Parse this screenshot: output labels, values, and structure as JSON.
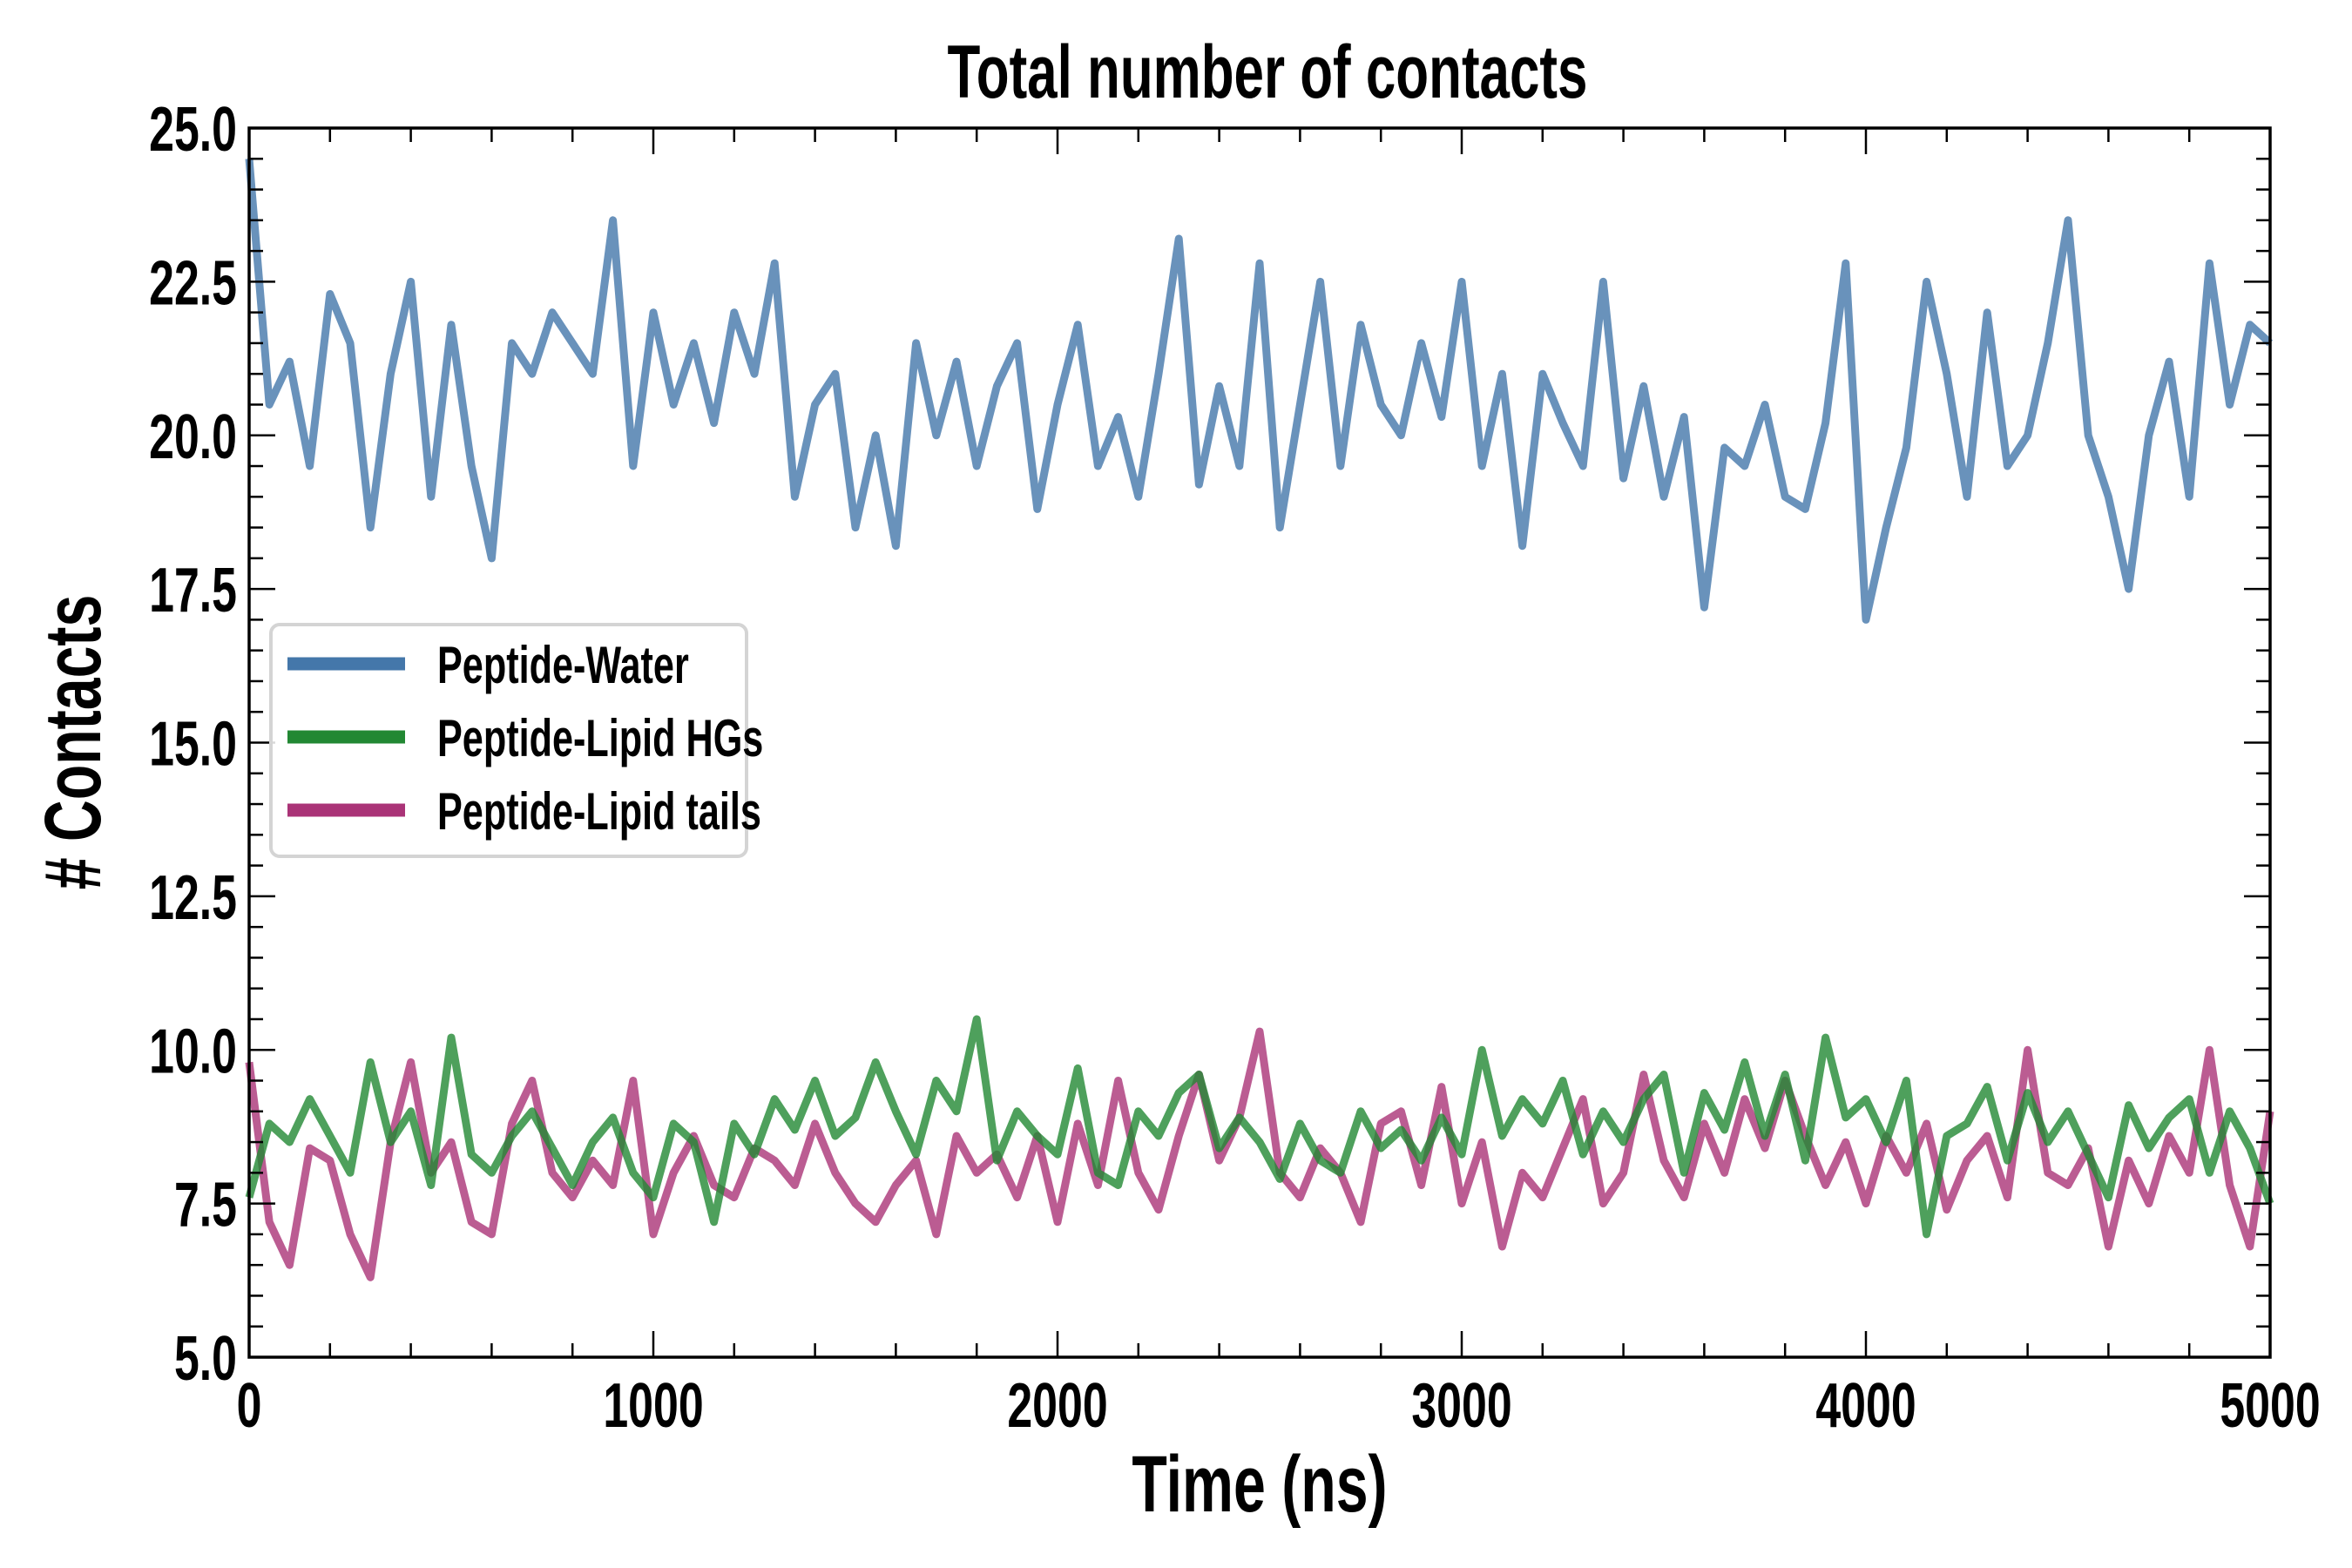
{
  "chart_data": {
    "type": "line",
    "title": "Total number of contacts",
    "xlabel": "Time (ns)",
    "ylabel": "# Contacts",
    "xlim": [
      0,
      5000
    ],
    "ylim": [
      5.0,
      25.0
    ],
    "xticks": [
      0,
      1000,
      2000,
      3000,
      4000,
      5000
    ],
    "xtick_labels": [
      "0",
      "1000",
      "2000",
      "3000",
      "4000",
      "5000"
    ],
    "yticks": [
      5.0,
      7.5,
      10.0,
      12.5,
      15.0,
      17.5,
      20.0,
      22.5,
      25.0
    ],
    "ytick_labels": [
      "5.0",
      "7.5",
      "10.0",
      "12.5",
      "15.0",
      "17.5",
      "20.0",
      "22.5",
      "25.0"
    ],
    "grid": false,
    "legend_position": "center-left",
    "x_step": 50,
    "series": [
      {
        "name": "Peptide-Water",
        "color": "#4477aa",
        "values": [
          24.5,
          20.5,
          21.2,
          19.5,
          22.3,
          21.5,
          18.5,
          21.0,
          22.5,
          19.0,
          21.8,
          19.5,
          18.0,
          21.5,
          21.0,
          22.0,
          21.5,
          21.0,
          23.5,
          19.5,
          22.0,
          20.5,
          21.5,
          20.2,
          22.0,
          21.0,
          22.8,
          19.0,
          20.5,
          21.0,
          18.5,
          20.0,
          18.2,
          21.5,
          20.0,
          21.2,
          19.5,
          20.8,
          21.5,
          18.8,
          20.5,
          21.8,
          19.5,
          20.3,
          19.0,
          21.0,
          23.2,
          19.2,
          20.8,
          19.5,
          22.8,
          18.5,
          20.5,
          22.5,
          19.5,
          21.8,
          20.5,
          20.0,
          21.5,
          20.3,
          22.5,
          19.5,
          21.0,
          18.2,
          21.0,
          20.2,
          19.5,
          22.5,
          19.3,
          20.8,
          19.0,
          20.3,
          17.2,
          19.8,
          19.5,
          20.5,
          19.0,
          18.8,
          20.2,
          22.8,
          17.0,
          18.5,
          19.8,
          22.5,
          21.0,
          19.0,
          22.0,
          19.5,
          20.0,
          21.5,
          23.5,
          20.0,
          19.0,
          17.5,
          20.0,
          21.2,
          19.0,
          22.8,
          20.5,
          21.8,
          21.5
        ]
      },
      {
        "name": "Peptide-Lipid HGs",
        "color": "#228833",
        "values": [
          7.6,
          8.8,
          8.5,
          9.2,
          8.6,
          8.0,
          9.8,
          8.5,
          9.0,
          7.8,
          10.2,
          8.3,
          8.0,
          8.6,
          9.0,
          8.4,
          7.8,
          8.5,
          8.9,
          8.0,
          7.6,
          8.8,
          8.5,
          7.2,
          8.8,
          8.3,
          9.2,
          8.7,
          9.5,
          8.6,
          8.9,
          9.8,
          9.0,
          8.3,
          9.5,
          9.0,
          10.5,
          8.2,
          9.0,
          8.6,
          8.3,
          9.7,
          8.0,
          7.8,
          9.0,
          8.6,
          9.3,
          9.6,
          8.4,
          8.9,
          8.5,
          7.9,
          8.8,
          8.2,
          8.0,
          9.0,
          8.4,
          8.7,
          8.2,
          8.9,
          8.3,
          10.0,
          8.6,
          9.2,
          8.8,
          9.5,
          8.3,
          9.0,
          8.5,
          9.2,
          9.6,
          8.0,
          9.3,
          8.7,
          9.8,
          8.6,
          9.6,
          8.2,
          10.2,
          8.9,
          9.2,
          8.5,
          9.5,
          7.0,
          8.6,
          8.8,
          9.4,
          8.2,
          9.3,
          8.5,
          9.0,
          8.3,
          7.6,
          9.1,
          8.4,
          8.9,
          9.2,
          8.0,
          9.0,
          8.4,
          7.5
        ]
      },
      {
        "name": "Peptide-Lipid tails",
        "color": "#aa3377",
        "values": [
          9.8,
          7.2,
          6.5,
          8.4,
          8.2,
          7.0,
          6.3,
          8.5,
          9.8,
          8.0,
          8.5,
          7.2,
          7.0,
          8.8,
          9.5,
          8.0,
          7.6,
          8.2,
          7.8,
          9.5,
          7.0,
          8.0,
          8.6,
          7.8,
          7.6,
          8.4,
          8.2,
          7.8,
          8.8,
          8.0,
          7.5,
          7.2,
          7.8,
          8.2,
          7.0,
          8.6,
          8.0,
          8.3,
          7.6,
          8.6,
          7.2,
          8.8,
          7.8,
          9.5,
          8.0,
          7.4,
          8.6,
          9.6,
          8.2,
          8.9,
          10.3,
          8.0,
          7.6,
          8.4,
          8.0,
          7.2,
          8.8,
          9.0,
          7.8,
          9.4,
          7.5,
          8.5,
          6.8,
          8.0,
          7.6,
          8.4,
          9.2,
          7.5,
          8.0,
          9.6,
          8.2,
          7.6,
          8.8,
          8.0,
          9.2,
          8.4,
          9.5,
          8.6,
          7.8,
          8.5,
          7.5,
          8.6,
          8.0,
          8.8,
          7.4,
          8.2,
          8.6,
          7.6,
          10.0,
          8.0,
          7.8,
          8.4,
          6.8,
          8.2,
          7.5,
          8.6,
          8.0,
          10.0,
          7.8,
          6.8,
          9.0
        ]
      }
    ]
  }
}
